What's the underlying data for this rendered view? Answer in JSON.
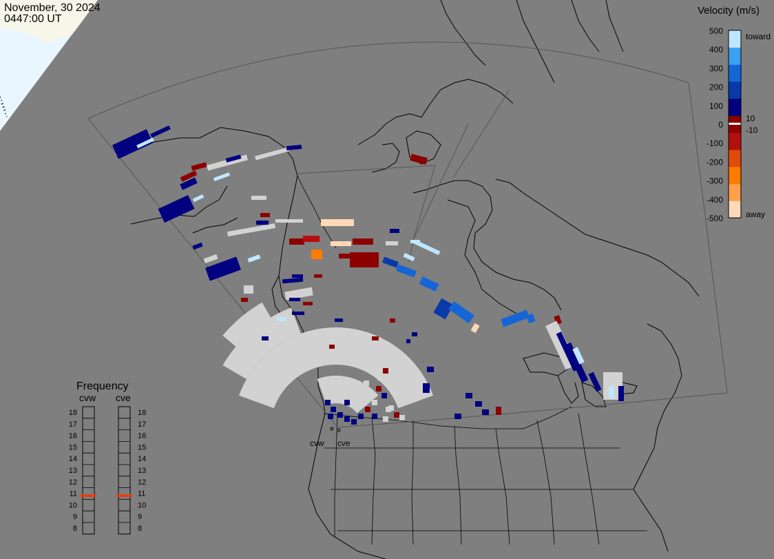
{
  "header": {
    "date": "November, 30 2024",
    "time": "0447:00 UT"
  },
  "velocity_scale": {
    "title": "Velocity (m/s)",
    "ticks": [
      "500",
      "400",
      "300",
      "200",
      "100",
      "0",
      "-100",
      "-200",
      "-300",
      "-400",
      "-500"
    ],
    "label_toward": "toward",
    "label_away": "away",
    "label_pos_threshold": "10",
    "label_neg_threshold": "-10",
    "colors": [
      "#ffd9b8",
      "#ffa04a",
      "#ff7a00",
      "#e04b0a",
      "#b30f0f",
      "#8c0000",
      "#000080",
      "#0a3aa8",
      "#1466d6",
      "#3aa0f0",
      "#bfe6ff"
    ]
  },
  "frequency": {
    "title": "Frequency",
    "radars": [
      "cvw",
      "cve"
    ],
    "levels": [
      "18",
      "17",
      "16",
      "15",
      "14",
      "13",
      "12",
      "11",
      "10",
      "9",
      "8"
    ],
    "selected": {
      "cvw": 11,
      "cve": 11
    },
    "marker_color": "#e0421a"
  },
  "map": {
    "radar_labels": [
      "cvw",
      "cve"
    ],
    "background_color": "#7f7f7f",
    "scatter_gray": "#d2d2d2"
  }
}
